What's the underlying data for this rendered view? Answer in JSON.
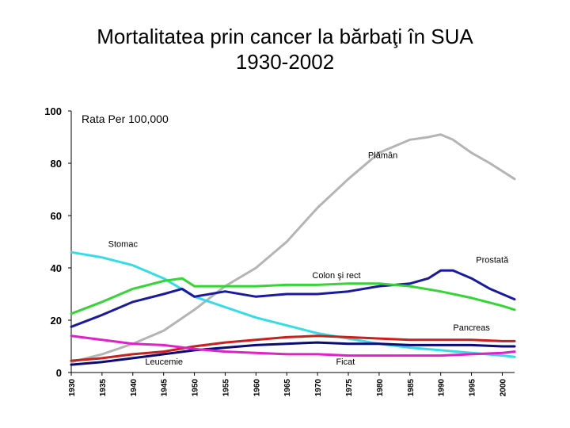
{
  "chart_data": {
    "type": "line",
    "title": "Mortalitatea prin cancer la bărbaţi în SUA",
    "subtitle": "1930-2002",
    "ylabel": "Rata Per 100,000",
    "xlabel": "",
    "xlim": [
      1930,
      2002
    ],
    "ylim": [
      0,
      100
    ],
    "y_ticks": [
      "0",
      "20",
      "40",
      "60",
      "80",
      "100"
    ],
    "x_ticks": [
      "1930",
      "1935",
      "1940",
      "1945",
      "1950",
      "1955",
      "1960",
      "1965",
      "1970",
      "1975",
      "1980",
      "1985",
      "1990",
      "1995",
      "2000"
    ],
    "series": [
      {
        "name": "Plămân",
        "color": "#b4b4b4",
        "x": [
          1930,
          1935,
          1940,
          1945,
          1950,
          1955,
          1960,
          1965,
          1970,
          1975,
          1980,
          1985,
          1988,
          1990,
          1992,
          1995,
          1998,
          2000,
          2002
        ],
        "values": [
          4,
          7,
          11,
          16,
          24,
          33,
          40,
          50,
          63,
          74,
          84,
          89,
          90,
          91,
          89,
          84,
          80,
          77,
          74
        ]
      },
      {
        "name": "Stomac",
        "color": "#33dde6",
        "x": [
          1930,
          1935,
          1940,
          1945,
          1950,
          1955,
          1960,
          1965,
          1970,
          1975,
          1980,
          1985,
          1990,
          1995,
          2000,
          2002
        ],
        "values": [
          46,
          44,
          41,
          36,
          29,
          25,
          21,
          18,
          15,
          13,
          11,
          9.5,
          8.5,
          7.5,
          6.5,
          6
        ]
      },
      {
        "name": "Prostată",
        "color": "#1a1aa0",
        "x": [
          1930,
          1935,
          1940,
          1945,
          1948,
          1950,
          1955,
          1960,
          1965,
          1970,
          1975,
          1980,
          1985,
          1988,
          1990,
          1992,
          1995,
          1998,
          2000,
          2002
        ],
        "values": [
          17.5,
          22,
          27,
          30,
          32,
          29,
          31,
          29,
          30,
          30,
          31,
          33,
          34,
          36,
          39,
          39,
          36,
          32,
          30,
          28
        ]
      },
      {
        "name": "Colon şi rect",
        "color": "#33d633",
        "x": [
          1930,
          1935,
          1940,
          1945,
          1948,
          1950,
          1955,
          1960,
          1965,
          1970,
          1975,
          1980,
          1985,
          1990,
          1995,
          2000,
          2002
        ],
        "values": [
          22.5,
          27,
          32,
          35,
          36,
          33,
          33,
          33,
          33.5,
          33.5,
          34,
          34,
          33,
          31,
          28.5,
          25.5,
          24
        ]
      },
      {
        "name": "Pancreas",
        "color": "#c8201c",
        "x": [
          1930,
          1935,
          1940,
          1945,
          1950,
          1955,
          1960,
          1965,
          1970,
          1975,
          1980,
          1985,
          1990,
          1995,
          2000,
          2002
        ],
        "values": [
          4.5,
          5.5,
          7,
          8,
          10,
          11.5,
          12.5,
          13.5,
          14,
          13.5,
          13,
          12.5,
          12.5,
          12.5,
          12,
          12
        ]
      },
      {
        "name": "Leucemie",
        "color": "#0a0a78",
        "x": [
          1930,
          1935,
          1940,
          1945,
          1950,
          1955,
          1960,
          1965,
          1970,
          1975,
          1980,
          1985,
          1990,
          1995,
          2000,
          2002
        ],
        "values": [
          3,
          4,
          5.5,
          7,
          8.5,
          9.5,
          10.5,
          11,
          11.5,
          11,
          11,
          10.5,
          10.5,
          10.5,
          10,
          10
        ]
      },
      {
        "name": "Ficat",
        "color": "#e020c8",
        "x": [
          1930,
          1935,
          1940,
          1945,
          1950,
          1955,
          1960,
          1965,
          1970,
          1975,
          1980,
          1985,
          1990,
          1995,
          2000,
          2002
        ],
        "values": [
          14,
          12.5,
          11,
          10.5,
          9,
          8,
          7.5,
          7,
          7,
          6.5,
          6.5,
          6.5,
          6.5,
          7,
          7.5,
          8
        ]
      }
    ]
  }
}
